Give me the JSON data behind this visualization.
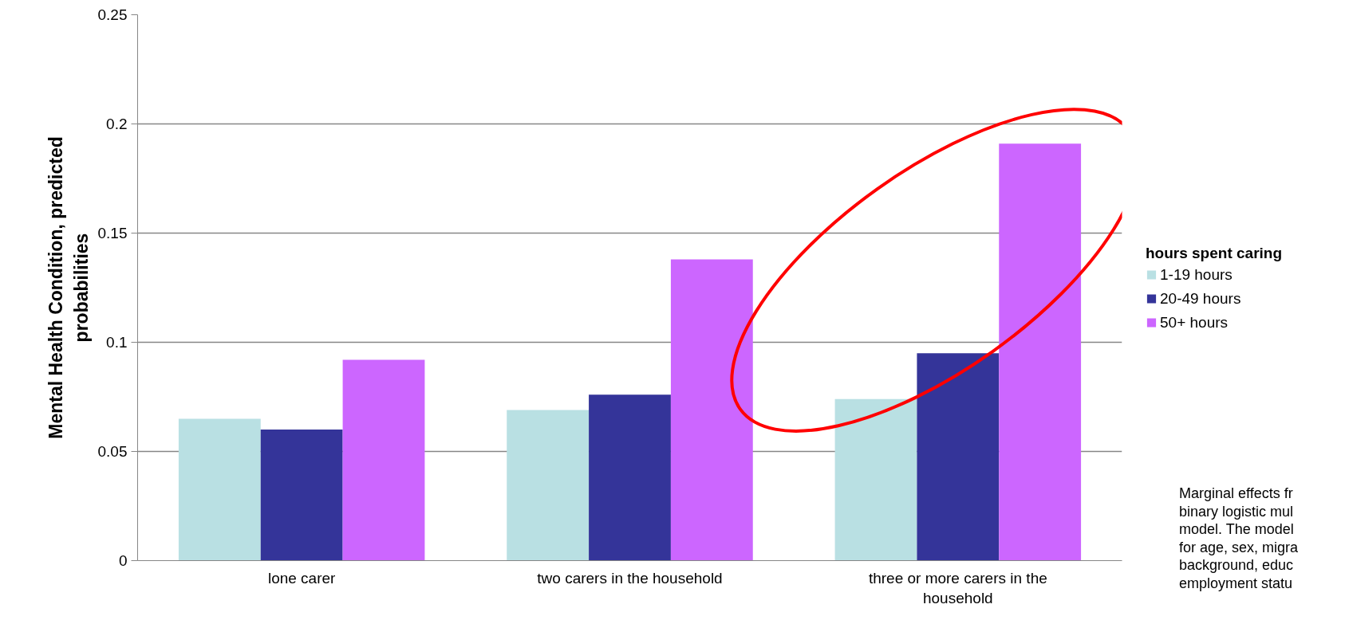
{
  "chart_data": {
    "type": "bar",
    "ylabel": "Mental Health Condition, predicted probabilities",
    "legend_title": "hours spent caring",
    "categories": [
      "lone carer",
      "two carers in the household",
      "three or more carers in the household"
    ],
    "series": [
      {
        "name": "1-19 hours",
        "color": "#b9e0e3",
        "values": [
          0.065,
          0.069,
          0.074
        ]
      },
      {
        "name": "20-49 hours",
        "color": "#343499",
        "values": [
          0.06,
          0.076,
          0.095
        ]
      },
      {
        "name": "50+ hours",
        "color": "#cc66ff",
        "values": [
          0.092,
          0.138,
          0.191
        ]
      }
    ],
    "ylim": [
      0,
      0.25
    ],
    "yticks": [
      0,
      0.05,
      0.1,
      0.15,
      0.2,
      0.25
    ],
    "grid": "y",
    "legend": "right",
    "annotations": [
      "Marginal effects fr\nbinary logistic mul\nmodel. The model\nfor age, sex, migra\nbackground, educ\nemployment statu"
    ]
  }
}
